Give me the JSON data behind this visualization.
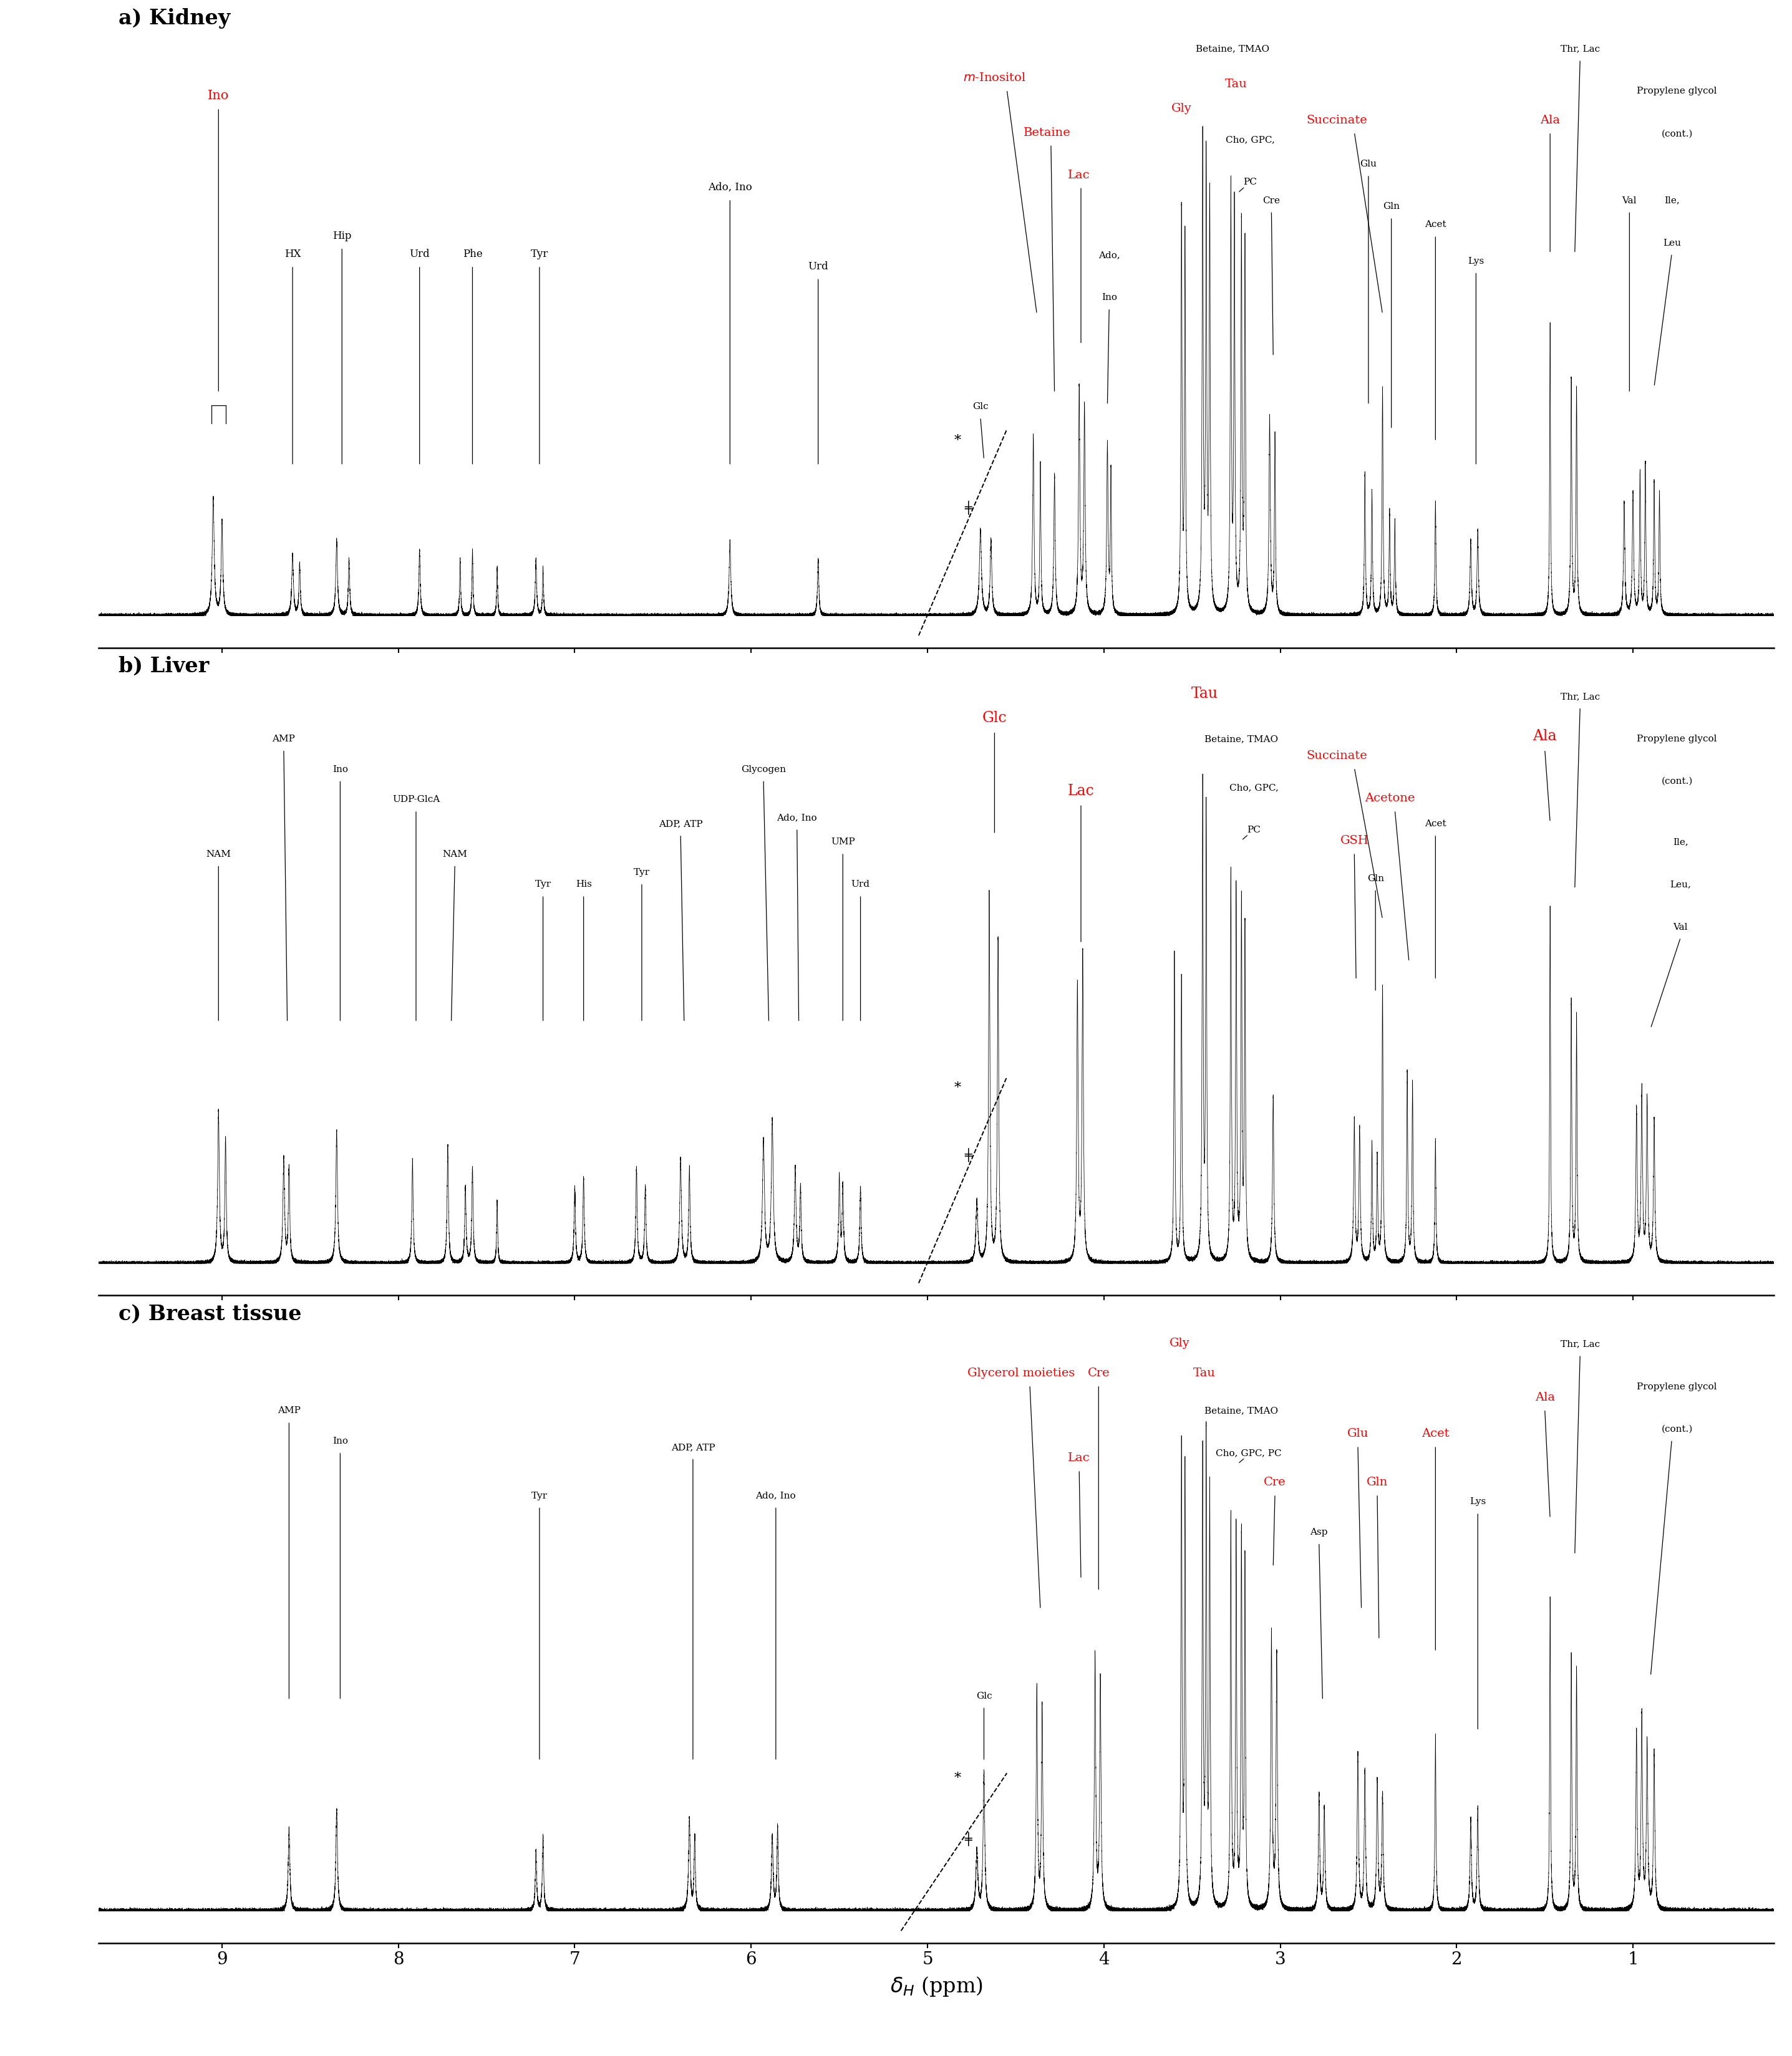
{
  "xlim": [
    9.7,
    0.2
  ],
  "xticks": [
    9,
    8,
    7,
    6,
    5,
    4,
    3,
    2,
    1
  ],
  "panel_titles": [
    "a) Kidney",
    "b) Liver",
    "c) Breast tissue"
  ],
  "xlabel": "$\\delta_{H}$ (ppm)"
}
